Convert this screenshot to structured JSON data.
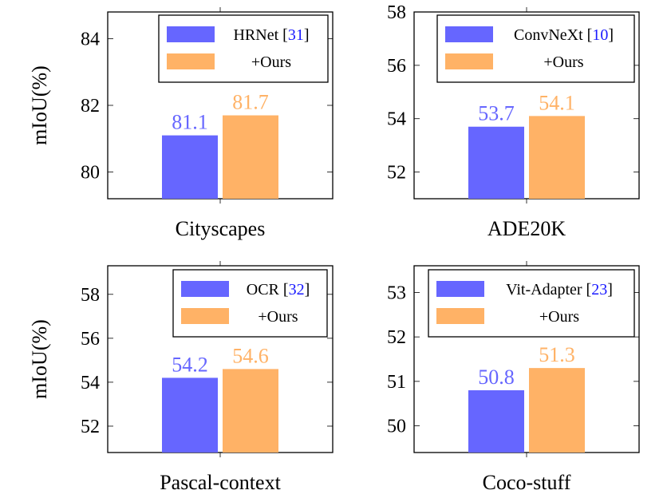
{
  "colors": {
    "baseline": "#6666ff",
    "ours": "#ffb266",
    "cite": "#1a1aff",
    "axis": "#000000"
  },
  "chart_data": [
    {
      "type": "bar",
      "ylabel": "mIoU(%)",
      "xlabel": "Cityscapes",
      "categories": [
        "Cityscapes"
      ],
      "ylim": [
        79.2,
        84.8
      ],
      "yticks": [
        80,
        82,
        84
      ],
      "legend_position": "top-right",
      "series": [
        {
          "name": "HRNet",
          "cite": "31",
          "values": [
            81.1
          ],
          "data_labels": [
            "81.1"
          ]
        },
        {
          "name": "+Ours",
          "cite": "",
          "values": [
            81.7
          ],
          "data_labels": [
            "81.7"
          ]
        }
      ]
    },
    {
      "type": "bar",
      "ylabel": "",
      "xlabel": "ADE20K",
      "categories": [
        "ADE20K"
      ],
      "ylim": [
        51.0,
        58.0
      ],
      "yticks": [
        52,
        54,
        56,
        58
      ],
      "legend_position": "top-right",
      "series": [
        {
          "name": "ConvNeXt",
          "cite": "10",
          "values": [
            53.7
          ],
          "data_labels": [
            "53.7"
          ]
        },
        {
          "name": "+Ours",
          "cite": "",
          "values": [
            54.1
          ],
          "data_labels": [
            "54.1"
          ]
        }
      ]
    },
    {
      "type": "bar",
      "ylabel": "mIoU(%)",
      "xlabel": "Pascal-context",
      "categories": [
        "Pascal-context"
      ],
      "ylim": [
        50.8,
        59.3
      ],
      "yticks": [
        52,
        54,
        56,
        58
      ],
      "legend_position": "top-right",
      "series": [
        {
          "name": "OCR",
          "cite": "32",
          "values": [
            54.2
          ],
          "data_labels": [
            "54.2"
          ]
        },
        {
          "name": "+Ours",
          "cite": "",
          "values": [
            54.6
          ],
          "data_labels": [
            "54.6"
          ]
        }
      ]
    },
    {
      "type": "bar",
      "ylabel": "",
      "xlabel": "Coco-stuff",
      "categories": [
        "Coco-stuff"
      ],
      "ylim": [
        49.4,
        53.6
      ],
      "yticks": [
        50,
        51,
        52,
        53
      ],
      "legend_position": "top-right",
      "series": [
        {
          "name": "Vit-Adapter",
          "cite": "23",
          "values": [
            50.8
          ],
          "data_labels": [
            "50.8"
          ]
        },
        {
          "name": "+Ours",
          "cite": "",
          "values": [
            51.3
          ],
          "data_labels": [
            "51.3"
          ]
        }
      ]
    }
  ]
}
